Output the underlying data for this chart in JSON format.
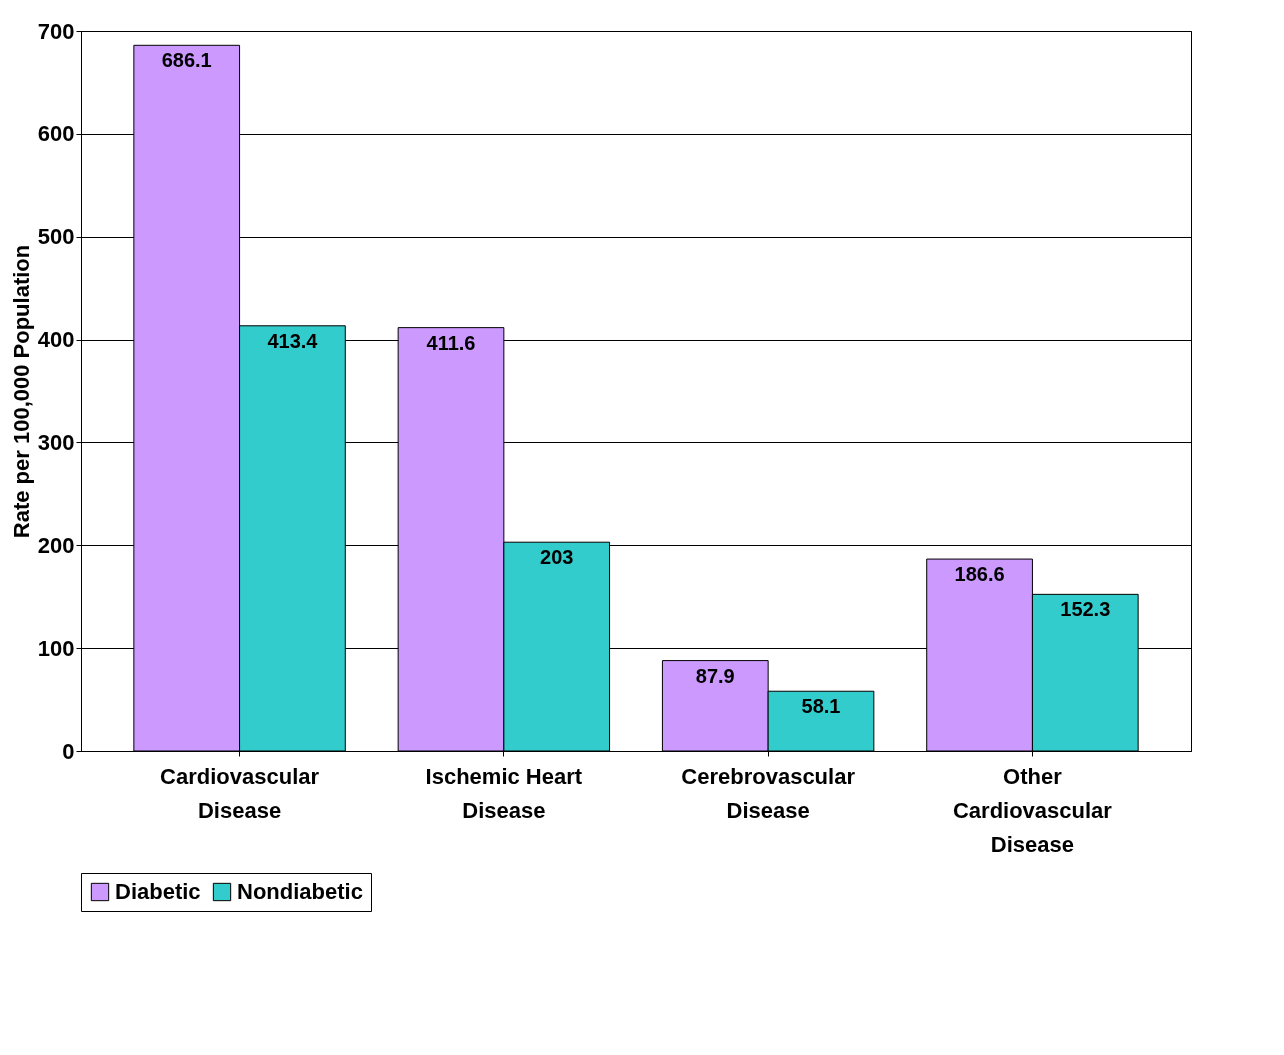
{
  "chart_data": {
    "type": "bar",
    "ylabel": "Rate per 100,000 Population",
    "categories": [
      "Cardiovascular Disease",
      "Ischemic Heart Disease",
      "Cerebrovascular Disease",
      "Other Cardiovascular Disease"
    ],
    "series": [
      {
        "name": "Diabetic",
        "color": "#cc99ff",
        "values": [
          686.1,
          411.6,
          87.9,
          186.6
        ]
      },
      {
        "name": "Nondiabetic",
        "color": "#33cccc",
        "values": [
          413.4,
          203,
          58.1,
          152.3
        ]
      }
    ],
    "ylim": [
      0,
      700
    ],
    "yticks": [
      0,
      100,
      200,
      300,
      400,
      500,
      600,
      700
    ],
    "grid": "y",
    "data_labels": true,
    "legend": "bottom"
  }
}
